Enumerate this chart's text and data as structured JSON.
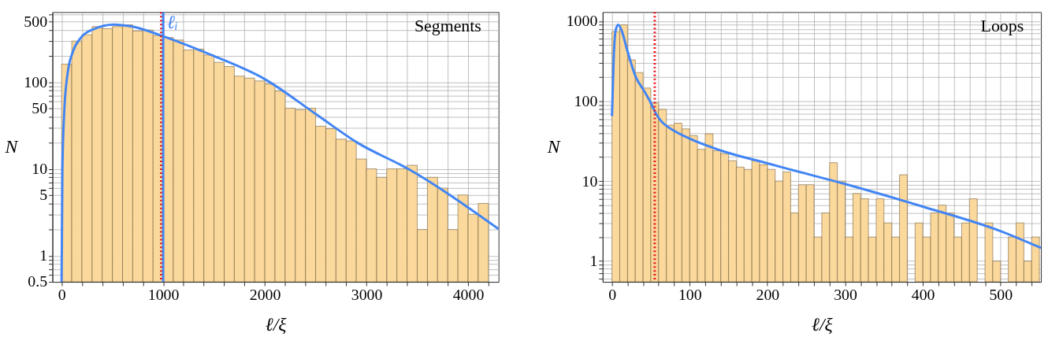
{
  "chart_data": [
    {
      "type": "histogram",
      "xlabel": "ℓ/ξ",
      "ylabel": "N",
      "log": true,
      "grid": true,
      "annotations": [
        "Segments"
      ],
      "bins": [
        0,
        100,
        200,
        300,
        400,
        500,
        600,
        700,
        800,
        900,
        1000,
        1100,
        1200,
        1300,
        1400,
        1500,
        1600,
        1700,
        1800,
        1900,
        2000,
        2100,
        2200,
        2300,
        2400,
        2500,
        2600,
        2700,
        2800,
        2900,
        3000,
        3100,
        3200,
        3300,
        3400,
        3500,
        3600,
        3700,
        3800,
        3900,
        4000,
        4100,
        4200
      ],
      "series": [
        {
          "type": "histogram",
          "color": "#fbd89b",
          "values": [
            161,
            297,
            351,
            436,
            413,
            436,
            457,
            388,
            399,
            344,
            326,
            305,
            234,
            240,
            205,
            169,
            151,
            117,
            111,
            103,
            95,
            79,
            50,
            48,
            50,
            31,
            29,
            22,
            21,
            13,
            10,
            8,
            10,
            10,
            11,
            2,
            8,
            6,
            2,
            5,
            3,
            4
          ]
        },
        {
          "type": "line",
          "color": "#4285f4",
          "x": [
            0,
            8,
            26,
            59,
            110,
            187,
            315,
            512,
            698,
            1000,
            1465,
            2000,
            2500,
            2912,
            3410,
            4300
          ],
          "values": [
            0.5,
            10,
            45,
            125,
            222,
            321,
            407,
            460,
            436,
            337,
            207,
            108,
            43,
            20,
            10,
            2.03
          ]
        }
      ],
      "ref_lines": [
        {
          "axis": "x",
          "value": 980,
          "color": "#e8171c",
          "line_style": "dotted"
        },
        {
          "axis": "x",
          "value": 1000,
          "label": "ℓᵢ",
          "color": "#4285f4",
          "line_style": "solid"
        }
      ],
      "xlim": [
        -90,
        4300
      ],
      "ylim": [
        0.5,
        640
      ],
      "xticks": [
        0,
        {
          "value": 200,
          "label": null
        },
        {
          "value": 400,
          "label": null
        },
        {
          "value": 600,
          "label": null
        },
        {
          "value": 800,
          "label": null
        },
        1000,
        {
          "value": 1200,
          "label": null
        },
        {
          "value": 1400,
          "label": null
        },
        {
          "value": 1600,
          "label": null
        },
        {
          "value": 1800,
          "label": null
        },
        2000,
        {
          "value": 2200,
          "label": null
        },
        {
          "value": 2400,
          "label": null
        },
        {
          "value": 2600,
          "label": null
        },
        {
          "value": 2800,
          "label": null
        },
        3000,
        {
          "value": 3200,
          "label": null
        },
        {
          "value": 3400,
          "label": null
        },
        {
          "value": 3600,
          "label": null
        },
        {
          "value": 3800,
          "label": null
        },
        4000,
        {
          "value": 4200,
          "label": null
        }
      ],
      "yticks": [
        0.5,
        {
          "value": 0.6,
          "label": null
        },
        {
          "value": 0.7,
          "label": null
        },
        {
          "value": 0.8,
          "label": null
        },
        {
          "value": 0.9,
          "label": null
        },
        1,
        {
          "value": 2,
          "label": null
        },
        {
          "value": 3,
          "label": null
        },
        {
          "value": 4,
          "label": null
        },
        5,
        {
          "value": 6,
          "label": null
        },
        {
          "value": 7,
          "label": null
        },
        {
          "value": 8,
          "label": null
        },
        {
          "value": 9,
          "label": null
        },
        10,
        {
          "value": 20,
          "label": null
        },
        {
          "value": 30,
          "label": null
        },
        {
          "value": 40,
          "label": null
        },
        50,
        {
          "value": 60,
          "label": null
        },
        {
          "value": 70,
          "label": null
        },
        {
          "value": 80,
          "label": null
        },
        {
          "value": 90,
          "label": null
        },
        100,
        {
          "value": 200,
          "label": null
        },
        {
          "value": 300,
          "label": null
        },
        {
          "value": 400,
          "label": null
        },
        500,
        {
          "value": 600,
          "label": null
        }
      ]
    },
    {
      "type": "histogram",
      "xlabel": "ℓ/ξ",
      "ylabel": "N",
      "log": true,
      "grid": true,
      "annotations": [
        "Loops"
      ],
      "bins": [
        0,
        10,
        20,
        30,
        40,
        50,
        60,
        70,
        80,
        90,
        100,
        110,
        120,
        130,
        140,
        150,
        160,
        170,
        180,
        190,
        200,
        210,
        220,
        230,
        240,
        250,
        260,
        270,
        280,
        290,
        300,
        310,
        320,
        330,
        340,
        350,
        360,
        370,
        380,
        390,
        400,
        410,
        420,
        430,
        440,
        450,
        460,
        470,
        480,
        490,
        500,
        510,
        520,
        530,
        540,
        550
      ],
      "series": [
        {
          "type": "histogram",
          "color": "#fbd89b",
          "values": [
            740,
            900,
            329,
            228,
            146,
            95,
            79,
            50,
            53,
            45,
            37,
            25,
            39,
            24,
            22,
            18,
            15,
            14,
            18,
            16,
            14,
            10,
            13,
            4,
            9,
            9,
            2,
            4,
            17,
            10,
            2,
            7,
            6,
            2,
            6,
            3,
            2,
            12,
            null,
            3,
            2,
            4,
            5,
            4,
            2,
            3,
            6,
            null,
            3,
            1,
            null,
            2,
            3,
            1,
            2
          ]
        },
        {
          "type": "line",
          "color": "#4285f4",
          "x": [
            0,
            2.3,
            4.7,
            8,
            12.4,
            19,
            30.8,
            40.8,
            50.2,
            56.5,
            64.2,
            77.6,
            100,
            141,
            200,
            222,
            300,
            400,
            500,
            552
          ],
          "values": [
            65,
            363,
            767,
            900,
            767,
            454,
            199,
            137,
            94,
            70,
            55,
            44,
            34,
            24,
            16.7,
            14.6,
            9.2,
            4.8,
            2.37,
            1.46
          ]
        }
      ],
      "ref_lines": [
        {
          "axis": "x",
          "value": 55,
          "color": "#e8171c",
          "line_style": "dotted"
        }
      ],
      "xlim": [
        -12,
        552
      ],
      "ylim": [
        0.55,
        1300
      ],
      "xticks": [
        0,
        {
          "value": 20,
          "label": null
        },
        {
          "value": 40,
          "label": null
        },
        {
          "value": 60,
          "label": null
        },
        {
          "value": 80,
          "label": null
        },
        100,
        {
          "value": 120,
          "label": null
        },
        {
          "value": 140,
          "label": null
        },
        {
          "value": 160,
          "label": null
        },
        {
          "value": 180,
          "label": null
        },
        200,
        {
          "value": 220,
          "label": null
        },
        {
          "value": 240,
          "label": null
        },
        {
          "value": 260,
          "label": null
        },
        {
          "value": 280,
          "label": null
        },
        300,
        {
          "value": 320,
          "label": null
        },
        {
          "value": 340,
          "label": null
        },
        {
          "value": 360,
          "label": null
        },
        {
          "value": 380,
          "label": null
        },
        400,
        {
          "value": 420,
          "label": null
        },
        {
          "value": 440,
          "label": null
        },
        {
          "value": 460,
          "label": null
        },
        {
          "value": 480,
          "label": null
        },
        500,
        {
          "value": 520,
          "label": null
        },
        {
          "value": 540,
          "label": null
        }
      ],
      "yticks": [
        {
          "value": 0.6,
          "label": null
        },
        {
          "value": 0.7,
          "label": null
        },
        {
          "value": 0.8,
          "label": null
        },
        {
          "value": 0.9,
          "label": null
        },
        1,
        {
          "value": 2,
          "label": null
        },
        {
          "value": 3,
          "label": null
        },
        {
          "value": 4,
          "label": null
        },
        {
          "value": 5,
          "label": null
        },
        {
          "value": 6,
          "label": null
        },
        {
          "value": 7,
          "label": null
        },
        {
          "value": 8,
          "label": null
        },
        {
          "value": 9,
          "label": null
        },
        10,
        {
          "value": 20,
          "label": null
        },
        {
          "value": 30,
          "label": null
        },
        {
          "value": 40,
          "label": null
        },
        {
          "value": 50,
          "label": null
        },
        {
          "value": 60,
          "label": null
        },
        {
          "value": 70,
          "label": null
        },
        {
          "value": 80,
          "label": null
        },
        {
          "value": 90,
          "label": null
        },
        100,
        {
          "value": 200,
          "label": null
        },
        {
          "value": 300,
          "label": null
        },
        {
          "value": 400,
          "label": null
        },
        {
          "value": 500,
          "label": null
        },
        {
          "value": 600,
          "label": null
        },
        {
          "value": 700,
          "label": null
        },
        {
          "value": 800,
          "label": null
        },
        {
          "value": 900,
          "label": null
        },
        1000
      ]
    }
  ]
}
